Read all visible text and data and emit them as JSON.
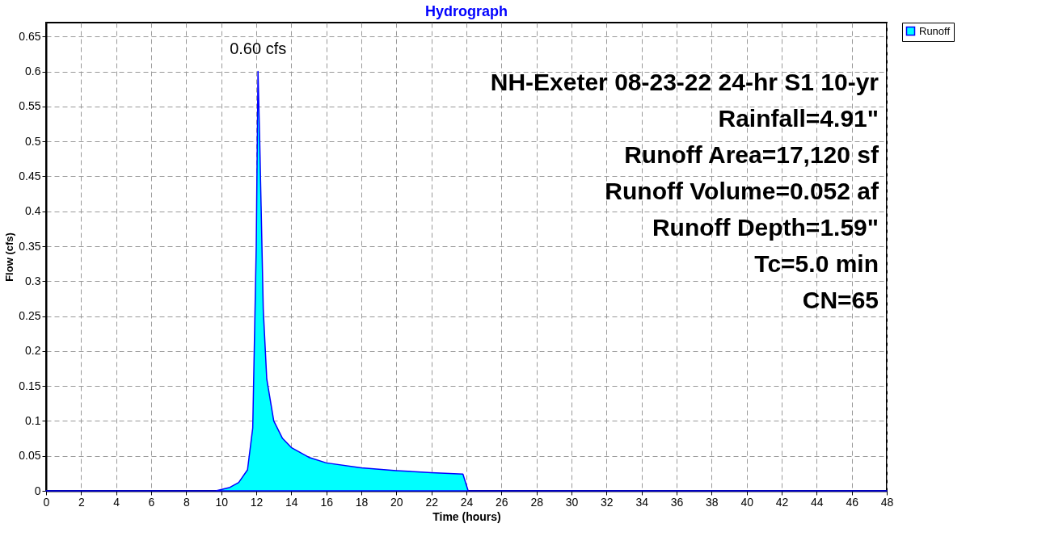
{
  "chart_data": {
    "type": "area",
    "title": "Hydrograph",
    "xlabel": "Time  (hours)",
    "ylabel": "Flow  (cfs)",
    "x": [
      0,
      9.7,
      10.5,
      11,
      11.5,
      11.8,
      12,
      12.1,
      12.2,
      12.4,
      12.6,
      13,
      13.5,
      14,
      15,
      16,
      18,
      20,
      22,
      23.8,
      24.1,
      48
    ],
    "series": [
      {
        "name": "Runoff",
        "color": "#00ffff",
        "values": [
          0,
          0,
          0.005,
          0.012,
          0.03,
          0.09,
          0.35,
          0.6,
          0.5,
          0.26,
          0.16,
          0.1,
          0.075,
          0.062,
          0.048,
          0.04,
          0.033,
          0.029,
          0.026,
          0.024,
          0,
          0
        ]
      }
    ],
    "xlim": [
      0,
      48
    ],
    "ylim": [
      0,
      0.67
    ],
    "xticks": [
      0,
      2,
      4,
      6,
      8,
      10,
      12,
      14,
      16,
      18,
      20,
      22,
      24,
      26,
      28,
      30,
      32,
      34,
      36,
      38,
      40,
      42,
      44,
      46,
      48
    ],
    "yticks": [
      0,
      0.05,
      0.1,
      0.15,
      0.2,
      0.25,
      0.3,
      0.35,
      0.4,
      0.45,
      0.5,
      0.55,
      0.6,
      0.65
    ],
    "annotations": [
      {
        "text": "0.60 cfs",
        "x": 12.1,
        "y": 0.6
      },
      "NH-Exeter 08-23-22 24-hr S1 10-yr",
      "Rainfall=4.91\"",
      "Runoff Area=17,120 sf",
      "Runoff Volume=0.052 af",
      "Runoff Depth=1.59\"",
      "Tc=5.0 min",
      "CN=65"
    ],
    "grid": true,
    "legend": "top right"
  }
}
